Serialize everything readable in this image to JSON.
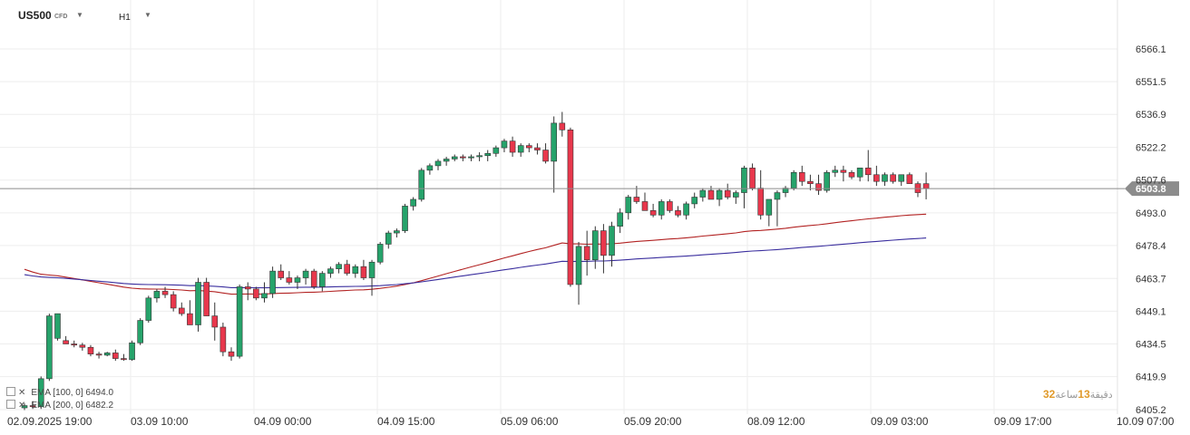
{
  "header": {
    "symbol": "US500",
    "symbol_type": "CFD",
    "timeframe": "H1"
  },
  "indicators": [
    {
      "label": "EMA [100, 0] 6494.0",
      "color": "#b22222"
    },
    {
      "label": "EMA [200, 0] 6482.2",
      "color": "#3a2e9e"
    }
  ],
  "countdown": {
    "minutes": "32",
    "sep": "دقيقة",
    "hours": "13",
    "text": "ساعة"
  },
  "colors": {
    "bull": "#26a36b",
    "bear": "#e8374c",
    "ema100": "#b22222",
    "ema200": "#3a2e9e",
    "grid": "#eeeeee",
    "price_line": "#8c8c8c",
    "price_tag": "#8c8c8c"
  },
  "chart_data": {
    "type": "candlestick",
    "y_ticks": [
      "6566.1",
      "6551.5",
      "6536.9",
      "6522.2",
      "6507.6",
      "6493.0",
      "6478.4",
      "6463.7",
      "6449.1",
      "6434.5",
      "6419.9",
      "6405.2"
    ],
    "x_labels": [
      "02.09.2025 19:00",
      "03.09 10:00",
      "04.09 00:00",
      "04.09 15:00",
      "05.09 06:00",
      "05.09 20:00",
      "08.09 12:00",
      "09.09 03:00",
      "09.09 17:00",
      "10.09 07:00"
    ],
    "ylim": [
      6405.2,
      6566.1
    ],
    "current_price": "6503.8",
    "candles": [
      [
        6406,
        6408,
        6405,
        6407
      ],
      [
        6407,
        6409,
        6405.5,
        6406.5
      ],
      [
        6406.5,
        6420,
        6405.5,
        6419
      ],
      [
        6419,
        6448,
        6418,
        6447
      ],
      [
        6437,
        6448,
        6436,
        6448
      ],
      [
        6436,
        6438,
        6435,
        6434.5
      ],
      [
        6434.5,
        6436,
        6433,
        6434
      ],
      [
        6434,
        6435,
        6431.5,
        6433
      ],
      [
        6433,
        6434,
        6429,
        6430
      ],
      [
        6430,
        6431,
        6428,
        6429.5
      ],
      [
        6429.5,
        6431,
        6429,
        6430.5
      ],
      [
        6430.5,
        6432,
        6427,
        6428
      ],
      [
        6428,
        6430,
        6427,
        6427.5
      ],
      [
        6427.5,
        6436,
        6427,
        6435
      ],
      [
        6435,
        6446,
        6434,
        6445
      ],
      [
        6445,
        6456,
        6444,
        6455
      ],
      [
        6455,
        6459,
        6453,
        6458
      ],
      [
        6458,
        6460,
        6455,
        6456.5
      ],
      [
        6456.5,
        6458,
        6449,
        6450.5
      ],
      [
        6450.5,
        6453,
        6447,
        6448
      ],
      [
        6448,
        6454,
        6443,
        6443
      ],
      [
        6443,
        6464,
        6440,
        6462
      ],
      [
        6462,
        6464,
        6447,
        6447
      ],
      [
        6447,
        6453,
        6436,
        6442
      ],
      [
        6442,
        6444,
        6429,
        6431
      ],
      [
        6431,
        6433,
        6427,
        6429
      ],
      [
        6429,
        6461,
        6428,
        6460
      ],
      [
        6460,
        6462,
        6454,
        6459
      ],
      [
        6459,
        6460,
        6454,
        6455
      ],
      [
        6455,
        6462,
        6453,
        6457
      ],
      [
        6457,
        6469,
        6455,
        6467
      ],
      [
        6467,
        6470,
        6463,
        6464
      ],
      [
        6464,
        6467,
        6461,
        6462
      ],
      [
        6462,
        6465,
        6459,
        6464
      ],
      [
        6464,
        6468,
        6461,
        6467
      ],
      [
        6467,
        6468,
        6459,
        6460
      ],
      [
        6460,
        6467,
        6458,
        6466
      ],
      [
        6466,
        6469,
        6464,
        6468
      ],
      [
        6468,
        6471,
        6466,
        6470
      ],
      [
        6470,
        6472,
        6465,
        6466
      ],
      [
        6466,
        6470,
        6464,
        6469
      ],
      [
        6469,
        6472,
        6463,
        6464
      ],
      [
        6464,
        6472,
        6456,
        6471
      ],
      [
        6471,
        6480,
        6470,
        6479
      ],
      [
        6479,
        6485,
        6477,
        6484
      ],
      [
        6484,
        6486,
        6482,
        6485
      ],
      [
        6485,
        6497,
        6484,
        6496
      ],
      [
        6496,
        6500,
        6494,
        6499
      ],
      [
        6499,
        6513,
        6498,
        6512
      ],
      [
        6512,
        6515,
        6510,
        6514
      ],
      [
        6514,
        6517,
        6512,
        6516
      ],
      [
        6516,
        6518,
        6514,
        6517
      ],
      [
        6517,
        6519,
        6516,
        6518
      ],
      [
        6518,
        6519,
        6516,
        6517.5
      ],
      [
        6517.5,
        6519,
        6516,
        6518
      ],
      [
        6518,
        6520,
        6516,
        6518.5
      ],
      [
        6518.5,
        6521,
        6516,
        6519.5
      ],
      [
        6519.5,
        6523,
        6518,
        6522
      ],
      [
        6522,
        6526,
        6520,
        6525
      ],
      [
        6525,
        6527,
        6518,
        6520
      ],
      [
        6520,
        6524,
        6518,
        6523
      ],
      [
        6523,
        6524,
        6520,
        6522
      ],
      [
        6522,
        6524,
        6519,
        6521
      ],
      [
        6521,
        6524,
        6515,
        6516
      ],
      [
        6516,
        6536,
        6502,
        6533
      ],
      [
        6533,
        6538,
        6527,
        6530
      ],
      [
        6530,
        6531,
        6460,
        6461
      ],
      [
        6461,
        6480,
        6452,
        6478
      ],
      [
        6478,
        6485,
        6465,
        6472
      ],
      [
        6472,
        6487,
        6468,
        6485
      ],
      [
        6485,
        6488,
        6466,
        6474
      ],
      [
        6474,
        6489,
        6469,
        6487
      ],
      [
        6487,
        6495,
        6484,
        6493
      ],
      [
        6493,
        6501,
        6490,
        6500
      ],
      [
        6500,
        6505,
        6497,
        6498
      ],
      [
        6498,
        6502,
        6494,
        6494
      ],
      [
        6494,
        6497,
        6491,
        6492
      ],
      [
        6492,
        6499,
        6490,
        6498
      ],
      [
        6498,
        6499,
        6493,
        6494
      ],
      [
        6494,
        6496,
        6491,
        6492
      ],
      [
        6492,
        6498,
        6490,
        6497
      ],
      [
        6497,
        6502,
        6495,
        6500
      ],
      [
        6500,
        6504,
        6498,
        6503
      ],
      [
        6503,
        6505,
        6499,
        6499
      ],
      [
        6499,
        6504,
        6496,
        6503
      ],
      [
        6503,
        6506,
        6499,
        6500
      ],
      [
        6500,
        6503,
        6497,
        6502
      ],
      [
        6502,
        6514,
        6495,
        6513
      ],
      [
        6513,
        6515,
        6503,
        6504
      ],
      [
        6504,
        6512,
        6490,
        6492
      ],
      [
        6492,
        6499,
        6487,
        6499
      ],
      [
        6499,
        6503,
        6487,
        6502
      ],
      [
        6502,
        6505,
        6500,
        6504
      ],
      [
        6504,
        6512,
        6503,
        6511
      ],
      [
        6511,
        6514,
        6505,
        6507
      ],
      [
        6507,
        6510,
        6503,
        6506
      ],
      [
        6506,
        6510,
        6501,
        6503
      ],
      [
        6503,
        6512,
        6502,
        6511
      ],
      [
        6511,
        6514,
        6509,
        6512
      ],
      [
        6512,
        6514,
        6507,
        6511
      ],
      [
        6511,
        6512,
        6508,
        6509
      ],
      [
        6509,
        6513,
        6507,
        6513
      ],
      [
        6513,
        6521,
        6507,
        6510
      ],
      [
        6510,
        6514,
        6505,
        6507
      ],
      [
        6507,
        6511,
        6505,
        6510
      ],
      [
        6510,
        6511,
        6506,
        6507
      ],
      [
        6507,
        6510,
        6505,
        6510
      ],
      [
        6510,
        6511,
        6506,
        6506
      ],
      [
        6506,
        6507,
        6500,
        6502
      ],
      [
        6506,
        6511,
        6499,
        6503.8
      ]
    ]
  }
}
